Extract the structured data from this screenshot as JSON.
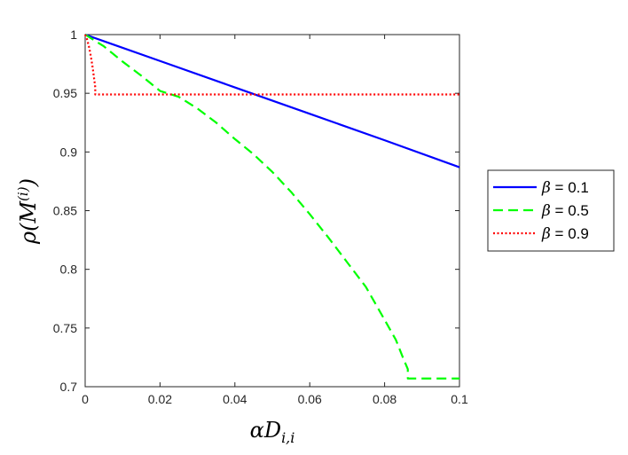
{
  "chart_data": {
    "type": "line",
    "xlabel": "αD_{i,i}",
    "ylabel": "ρ(M^{(i)})",
    "xlim": [
      0,
      0.1
    ],
    "ylim": [
      0.7,
      1.0
    ],
    "x_ticks": [
      "0",
      "0.02",
      "0.04",
      "0.06",
      "0.08",
      "0.1"
    ],
    "y_ticks": [
      "0.7",
      "0.75",
      "0.8",
      "0.85",
      "0.9",
      "0.95",
      "1"
    ],
    "grid": false,
    "legend_position": "outside-right",
    "series": [
      {
        "name": "β = 0.1",
        "legend_symbol": "β",
        "legend_value": "= 0.1",
        "style": "solid",
        "color": "#0000ff",
        "x": [
          0,
          0.02,
          0.04,
          0.06,
          0.08,
          0.1
        ],
        "y": [
          1.0,
          0.9775,
          0.955,
          0.9325,
          0.91,
          0.887
        ]
      },
      {
        "name": "β = 0.5",
        "legend_symbol": "β",
        "legend_value": "= 0.5",
        "style": "dashed",
        "color": "#00ff00",
        "x": [
          0,
          0.005,
          0.01,
          0.015,
          0.02,
          0.025,
          0.03,
          0.035,
          0.04,
          0.045,
          0.05,
          0.055,
          0.06,
          0.065,
          0.07,
          0.075,
          0.08,
          0.083,
          0.085,
          0.0862,
          0.0862,
          0.09,
          0.1
        ],
        "y": [
          1.0,
          0.99,
          0.977,
          0.965,
          0.952,
          0.947,
          0.937,
          0.925,
          0.911,
          0.898,
          0.883,
          0.866,
          0.847,
          0.827,
          0.806,
          0.785,
          0.757,
          0.74,
          0.724,
          0.715,
          0.707,
          0.707,
          0.707
        ]
      },
      {
        "name": "β = 0.9",
        "legend_symbol": "β",
        "legend_value": "= 0.9",
        "style": "dotted",
        "color": "#ff0000",
        "x": [
          0,
          0.0005,
          0.001,
          0.0015,
          0.002,
          0.0025,
          0.0027,
          0.0027,
          0.1
        ],
        "y": [
          1.0,
          0.996,
          0.99,
          0.982,
          0.972,
          0.96,
          0.955,
          0.949,
          0.949
        ]
      }
    ]
  }
}
